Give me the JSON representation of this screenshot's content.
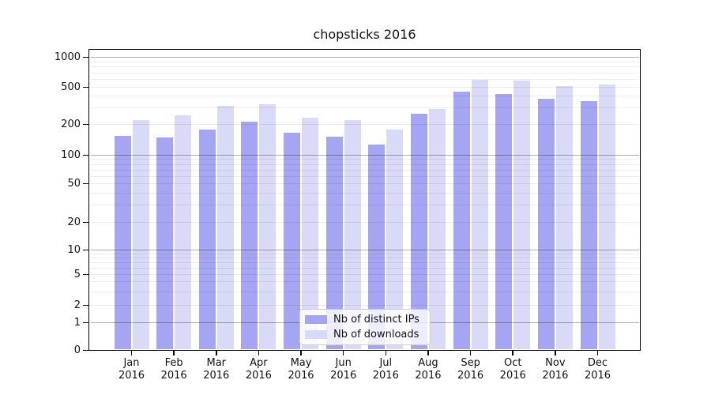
{
  "title": "chopsticks 2016",
  "colors": {
    "ips_bar": "#a5a5f4",
    "downloads_bar": "#d9d9f8",
    "spine": "#000000",
    "background": "#ffffff"
  },
  "legend": {
    "items": [
      {
        "label": "Nb of distinct IPs",
        "color": "#a5a5f4"
      },
      {
        "label": "Nb of downloads",
        "color": "#d9d9f8"
      }
    ]
  },
  "x_axis": {
    "months": [
      "Jan",
      "Feb",
      "Mar",
      "Apr",
      "May",
      "Jun",
      "Jul",
      "Aug",
      "Sep",
      "Oct",
      "Nov",
      "Dec"
    ],
    "year": "2016"
  },
  "y_axis": {
    "tick_labels": [
      "0",
      "1",
      "2",
      "5",
      "10",
      "20",
      "50",
      "100",
      "200",
      "500",
      "1000"
    ]
  },
  "chart_data": {
    "type": "bar",
    "title": "chopsticks 2016",
    "categories": [
      "Jan 2016",
      "Feb 2016",
      "Mar 2016",
      "Apr 2016",
      "May 2016",
      "Jun 2016",
      "Jul 2016",
      "Aug 2016",
      "Sep 2016",
      "Oct 2016",
      "Nov 2016",
      "Dec 2016"
    ],
    "series": [
      {
        "name": "Nb of distinct IPs",
        "color": "#a5a5f4",
        "values": [
          153,
          148,
          176,
          210,
          164,
          150,
          125,
          260,
          445,
          420,
          375,
          355
        ]
      },
      {
        "name": "Nb of downloads",
        "color": "#d9d9f8",
        "values": [
          222,
          250,
          315,
          325,
          232,
          222,
          178,
          290,
          590,
          580,
          510,
          530
        ]
      }
    ],
    "yscale": "symlog",
    "yticks": [
      0,
      1,
      2,
      5,
      10,
      20,
      50,
      100,
      200,
      500,
      1000
    ],
    "ylim": [
      0,
      1200
    ],
    "xlabel": "",
    "ylabel": "",
    "grid": true,
    "legend_position": "lower center"
  }
}
